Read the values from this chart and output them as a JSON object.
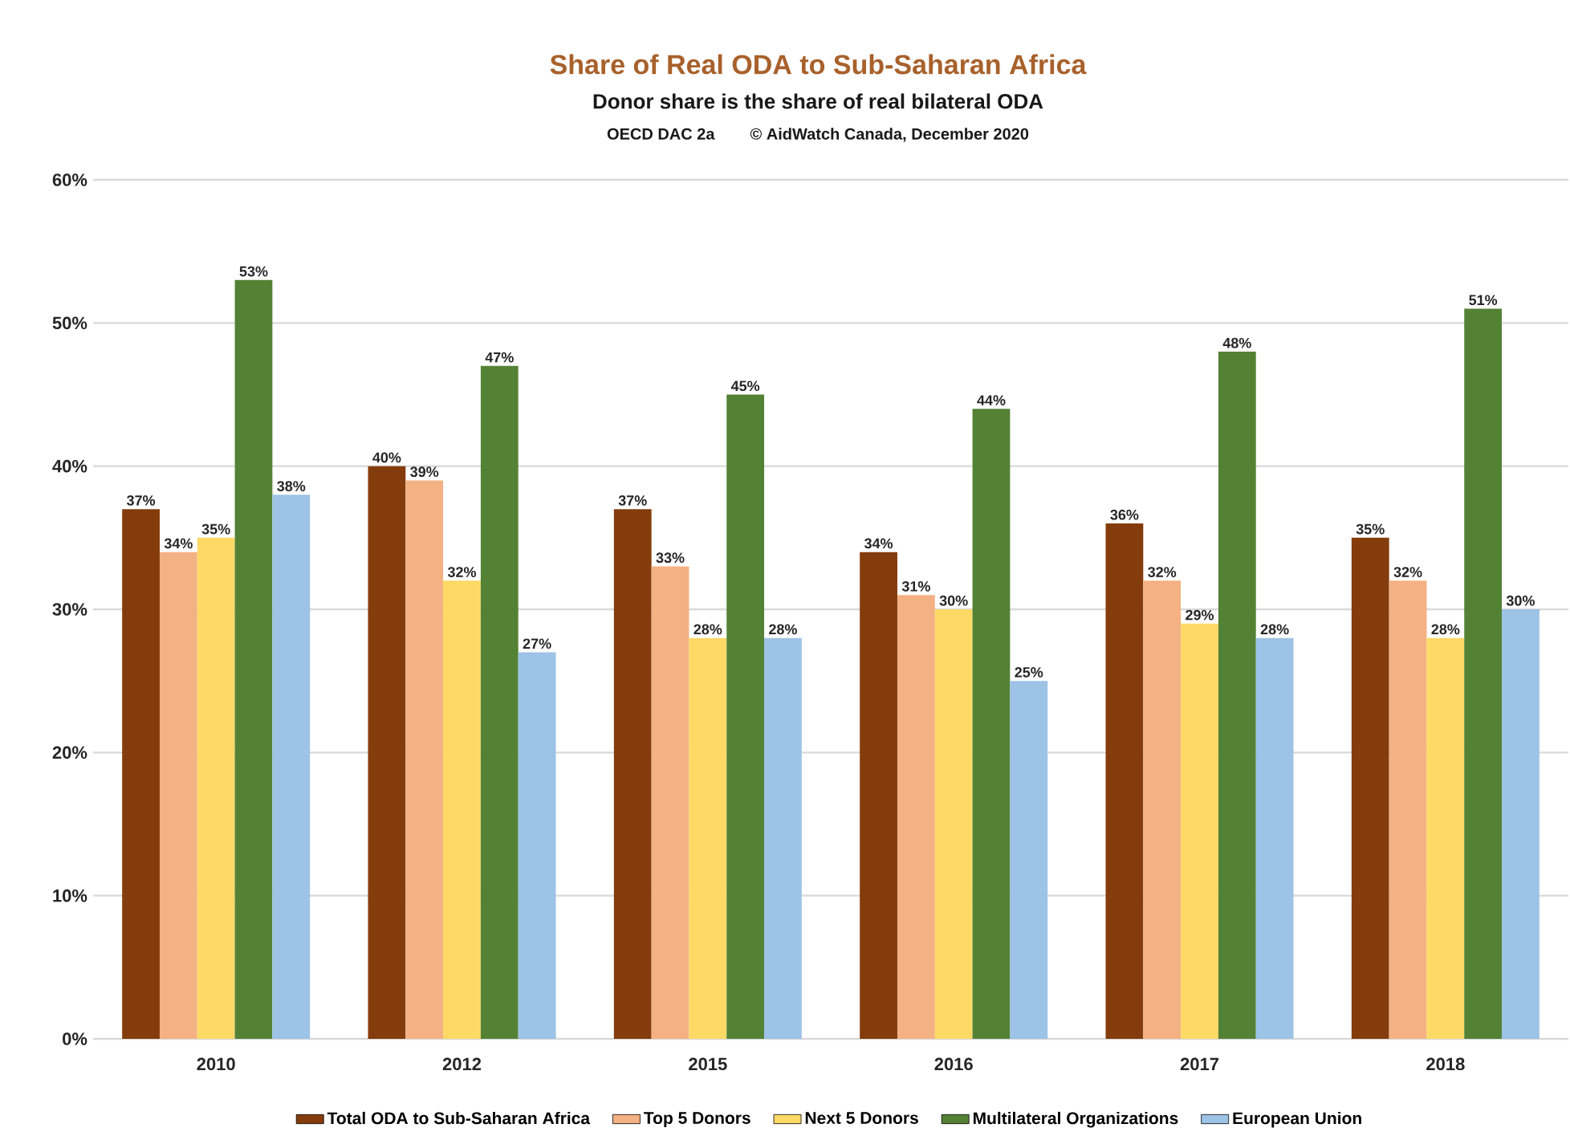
{
  "chart_data": {
    "type": "bar",
    "title": "Share of Real ODA to Sub-Saharan Africa",
    "subtitle": "Donor share is the share of real bilateral ODA",
    "annotations": [
      "OECD DAC 2a",
      "© AidWatch Canada, December 2020"
    ],
    "categories": [
      "2010",
      "2012",
      "2015",
      "2016",
      "2017",
      "2018"
    ],
    "series": [
      {
        "name": "Total ODA to Sub-Saharan Africa",
        "color": "#843c0c",
        "values": [
          37,
          40,
          37,
          34,
          36,
          35
        ],
        "value_labels": [
          "37%",
          "40%",
          "37%",
          "34%",
          "36%",
          "35%"
        ]
      },
      {
        "name": "Top 5 Donors",
        "color": "#f4b183",
        "values": [
          34,
          39,
          33,
          31,
          32,
          32
        ],
        "value_labels": [
          "34%",
          "39%",
          "33%",
          "31%",
          "32%",
          "32%"
        ]
      },
      {
        "name": "Next 5 Donors",
        "color": "#ffd966",
        "values": [
          35,
          32,
          28,
          30,
          29,
          28
        ],
        "value_labels": [
          "35%",
          "32%",
          "28%",
          "30%",
          "29%",
          "28%"
        ]
      },
      {
        "name": "Multilateral Organizations",
        "color": "#548235",
        "values": [
          53,
          47,
          45,
          44,
          48,
          51
        ],
        "value_labels": [
          "53%",
          "47%",
          "45%",
          "44%",
          "48%",
          "51%"
        ]
      },
      {
        "name": "European Union",
        "color": "#9dc3e6",
        "values": [
          38,
          27,
          28,
          25,
          28,
          30
        ],
        "value_labels": [
          "38%",
          "27%",
          "28%",
          "25%",
          "28%",
          "30%"
        ]
      }
    ],
    "ylim": [
      0,
      60
    ],
    "yticks": [
      {
        "value": 0,
        "label": "0%"
      },
      {
        "value": 10,
        "label": "10%"
      },
      {
        "value": 20,
        "label": "20%"
      },
      {
        "value": 30,
        "label": "30%"
      },
      {
        "value": 40,
        "label": "40%"
      },
      {
        "value": 50,
        "label": "50%"
      },
      {
        "value": 60,
        "label": "60%"
      }
    ],
    "grid": "y",
    "legend": "bottom"
  }
}
